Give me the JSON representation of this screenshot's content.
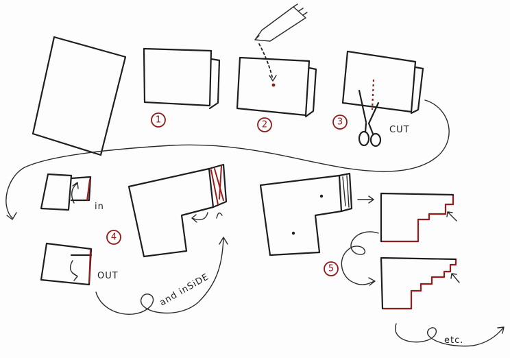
{
  "steps": [
    "1",
    "2",
    "3",
    "4",
    "5"
  ],
  "labels": {
    "cut": "CUT",
    "in": "in",
    "out": "OUT",
    "and_inside": "and inSiDE",
    "etc": "etc."
  },
  "colors": {
    "ink": "#1e1e1e",
    "accent": "#8e1a1a"
  }
}
